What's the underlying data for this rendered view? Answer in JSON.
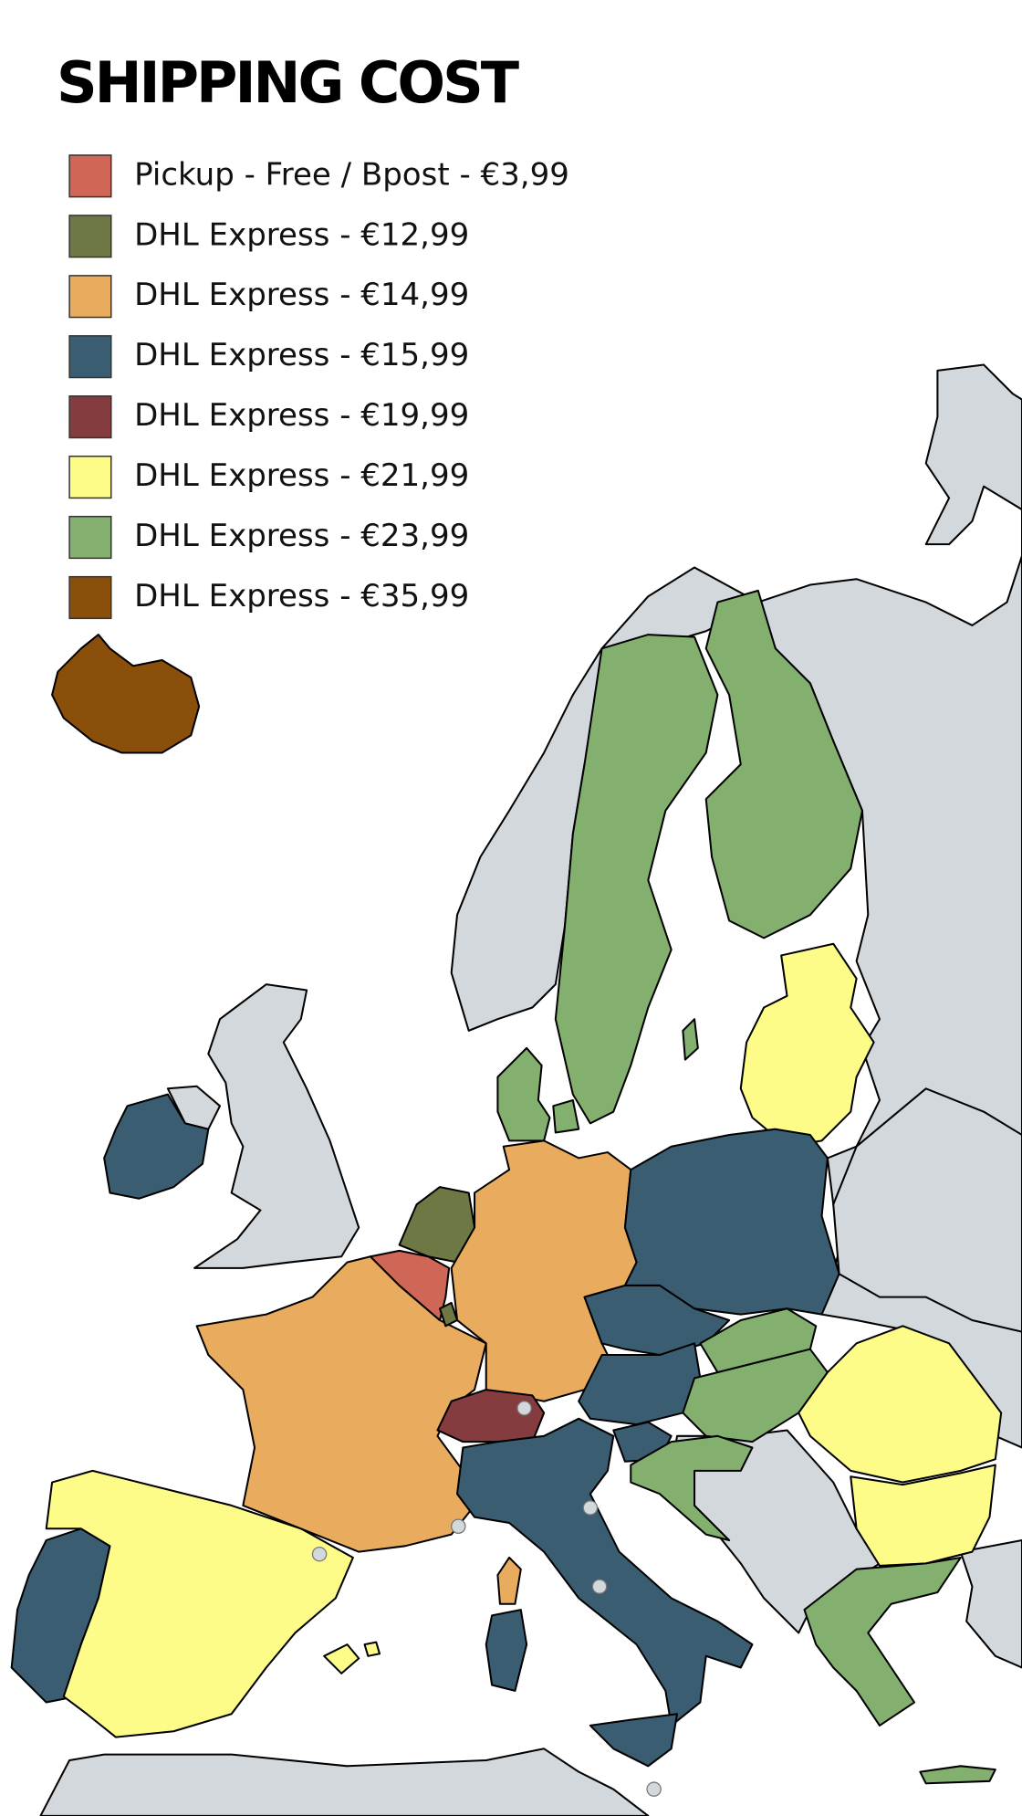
{
  "header": {
    "title": "SHIPPING COST"
  },
  "legend": [
    {
      "label": "Pickup - Free / Bpost - €3,99",
      "color": "#cf6656"
    },
    {
      "label": "DHL Express - €12,99",
      "color": "#6e7844"
    },
    {
      "label": "DHL Express - €14,99",
      "color": "#e9ac5e"
    },
    {
      "label": "DHL Express - €15,99",
      "color": "#3a5d71"
    },
    {
      "label": "DHL Express - €19,99",
      "color": "#843c3e"
    },
    {
      "label": "DHL Express - €21,99",
      "color": "#fdfc88"
    },
    {
      "label": "DHL Express - €23,99",
      "color": "#84b06f"
    },
    {
      "label": "DHL Express - €35,99",
      "color": "#8b4f0c"
    }
  ]
}
